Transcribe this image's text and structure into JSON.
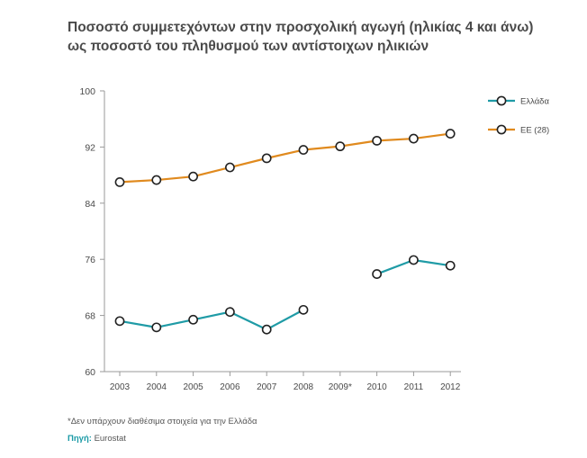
{
  "title_line1": "Ποσοστό συμμετεχόντων στην προσχολική αγωγή (ηλικίας 4 και άνω)",
  "title_line2": "ως ποσοστό του πληθυσμού των αντίστοιχων ηλικιών",
  "footnote": "*Δεν υπάρχουν διαθέσιμα στοιχεία για την Ελλάδα",
  "source_label": "Πηγή:",
  "source_value": "Eurostat",
  "colors": {
    "greece": "#1f9ba6",
    "eu28": "#e08a1e",
    "axis": "#9a9a9a",
    "text": "#4a4a4a"
  },
  "chart_data": {
    "type": "line",
    "categories": [
      "2003",
      "2004",
      "2005",
      "2006",
      "2007",
      "2008",
      "2009*",
      "2010",
      "2011",
      "2012"
    ],
    "series": [
      {
        "name": "Ελλάδα",
        "values": [
          67.2,
          66.3,
          67.4,
          68.5,
          66.0,
          68.8,
          null,
          73.9,
          75.9,
          75.1
        ]
      },
      {
        "name": "ΕΕ (28)",
        "values": [
          87.0,
          87.3,
          87.8,
          89.1,
          90.4,
          91.6,
          92.1,
          92.9,
          93.2,
          93.9
        ]
      }
    ],
    "ylim": [
      60,
      100
    ],
    "yticks": [
      60,
      68,
      76,
      84,
      92,
      100
    ],
    "xlabel": "",
    "ylabel": "",
    "grid": false,
    "legend": "right"
  }
}
